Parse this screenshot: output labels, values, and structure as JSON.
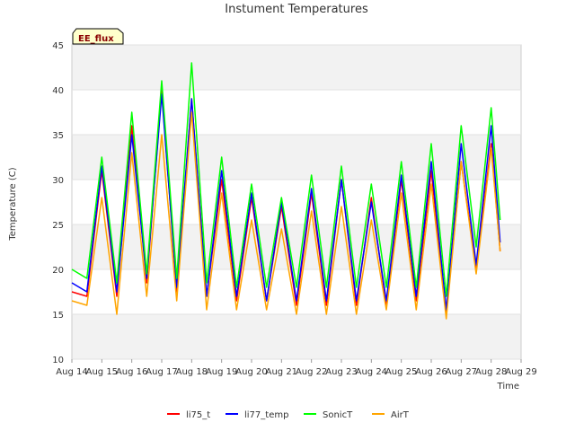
{
  "chart_data": {
    "type": "line",
    "title": "Instument Temperatures",
    "xlabel": "Time",
    "ylabel": "Temperature (C)",
    "ylim": [
      10,
      45
    ],
    "yticks": [
      10,
      15,
      20,
      25,
      30,
      35,
      40,
      45
    ],
    "xlim": [
      0,
      15
    ],
    "xtick_values": [
      0,
      1,
      2,
      3,
      4,
      5,
      6,
      7,
      8,
      9,
      10,
      11,
      12,
      13,
      14,
      15
    ],
    "xtick_labels": [
      "Aug 14",
      "Aug 15",
      "Aug 16",
      "Aug 17",
      "Aug 18",
      "Aug 19",
      "Aug 20",
      "Aug 21",
      "Aug 22",
      "Aug 23",
      "Aug 24",
      "Aug 25",
      "Aug 26",
      "Aug 27",
      "Aug 28",
      "Aug 29"
    ],
    "grid": "horizontal alternating bands",
    "legend_position": "bottom",
    "badge": "EE_flux",
    "x": [
      0.0,
      0.5,
      1.0,
      1.5,
      2.0,
      2.5,
      3.0,
      3.5,
      4.0,
      4.5,
      5.0,
      5.5,
      6.0,
      6.5,
      7.0,
      7.5,
      8.0,
      8.5,
      9.0,
      9.5,
      10.0,
      10.5,
      11.0,
      11.5,
      12.0,
      12.5,
      13.0,
      13.5,
      14.0,
      14.3
    ],
    "series": [
      {
        "name": "li75_t",
        "color": "#ff0000",
        "values": [
          17.5,
          17.0,
          31.0,
          17.0,
          36.0,
          18.5,
          40.0,
          17.5,
          39.0,
          17.0,
          30.0,
          16.5,
          28.0,
          16.5,
          27.0,
          16.0,
          28.5,
          16.0,
          30.0,
          16.0,
          28.0,
          16.0,
          30.0,
          16.5,
          31.0,
          15.0,
          32.0,
          20.0,
          34.0,
          22.0
        ]
      },
      {
        "name": "li77_temp",
        "color": "#0000ff",
        "values": [
          18.5,
          17.5,
          31.5,
          17.5,
          35.0,
          19.0,
          39.5,
          18.0,
          39.0,
          17.0,
          31.0,
          17.0,
          28.5,
          16.5,
          27.5,
          16.5,
          29.0,
          16.5,
          30.0,
          16.5,
          27.5,
          16.5,
          30.5,
          17.0,
          32.0,
          15.5,
          34.0,
          20.5,
          36.0,
          23.0
        ]
      },
      {
        "name": "SonicT",
        "color": "#00ff00",
        "values": [
          20.0,
          19.0,
          32.5,
          18.5,
          37.5,
          19.5,
          41.0,
          19.0,
          43.0,
          18.5,
          32.5,
          18.0,
          29.5,
          18.0,
          28.0,
          18.0,
          30.5,
          18.0,
          31.5,
          18.0,
          29.5,
          18.0,
          32.0,
          18.0,
          34.0,
          17.0,
          36.0,
          22.5,
          38.0,
          25.5
        ]
      },
      {
        "name": "AirT",
        "color": "#ffa500",
        "values": [
          16.5,
          16.0,
          28.0,
          15.0,
          33.0,
          17.0,
          35.0,
          16.5,
          37.5,
          15.5,
          28.5,
          15.5,
          25.5,
          15.5,
          24.5,
          15.0,
          26.5,
          15.0,
          27.0,
          15.0,
          25.5,
          15.5,
          28.5,
          15.5,
          29.5,
          14.5,
          32.0,
          19.5,
          33.5,
          22.0
        ]
      }
    ]
  }
}
